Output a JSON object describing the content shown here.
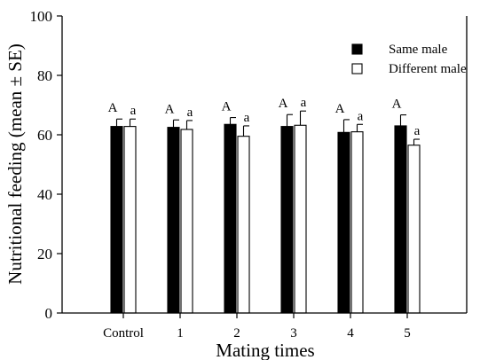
{
  "chart_data": {
    "type": "bar",
    "title": "",
    "xlabel": "Mating times",
    "ylabel": "Nutritional feeding (mean ± SE)",
    "categories": [
      "Control",
      "1",
      "2",
      "3",
      "4",
      "5"
    ],
    "ylim": [
      0,
      100
    ],
    "yticks": [
      0,
      20,
      40,
      60,
      80,
      100
    ],
    "grid": false,
    "legend_position": "top-right",
    "series": [
      {
        "name": "Same male",
        "color": "#000000",
        "fill": "solid",
        "values": [
          62.8,
          62.5,
          63.5,
          62.8,
          60.8,
          63.0
        ],
        "errors": [
          2.5,
          2.5,
          2.3,
          4.0,
          4.3,
          3.7
        ],
        "letters": [
          "A",
          "A",
          "A",
          "A",
          "A",
          "A"
        ]
      },
      {
        "name": "Different male",
        "color": "#000000",
        "fill": "hollow",
        "values": [
          62.8,
          61.8,
          59.5,
          63.2,
          61.0,
          56.5
        ],
        "errors": [
          2.5,
          3.0,
          3.5,
          4.8,
          2.5,
          2.0
        ],
        "letters": [
          "a",
          "a",
          "a",
          "a",
          "a",
          "a"
        ]
      }
    ]
  }
}
